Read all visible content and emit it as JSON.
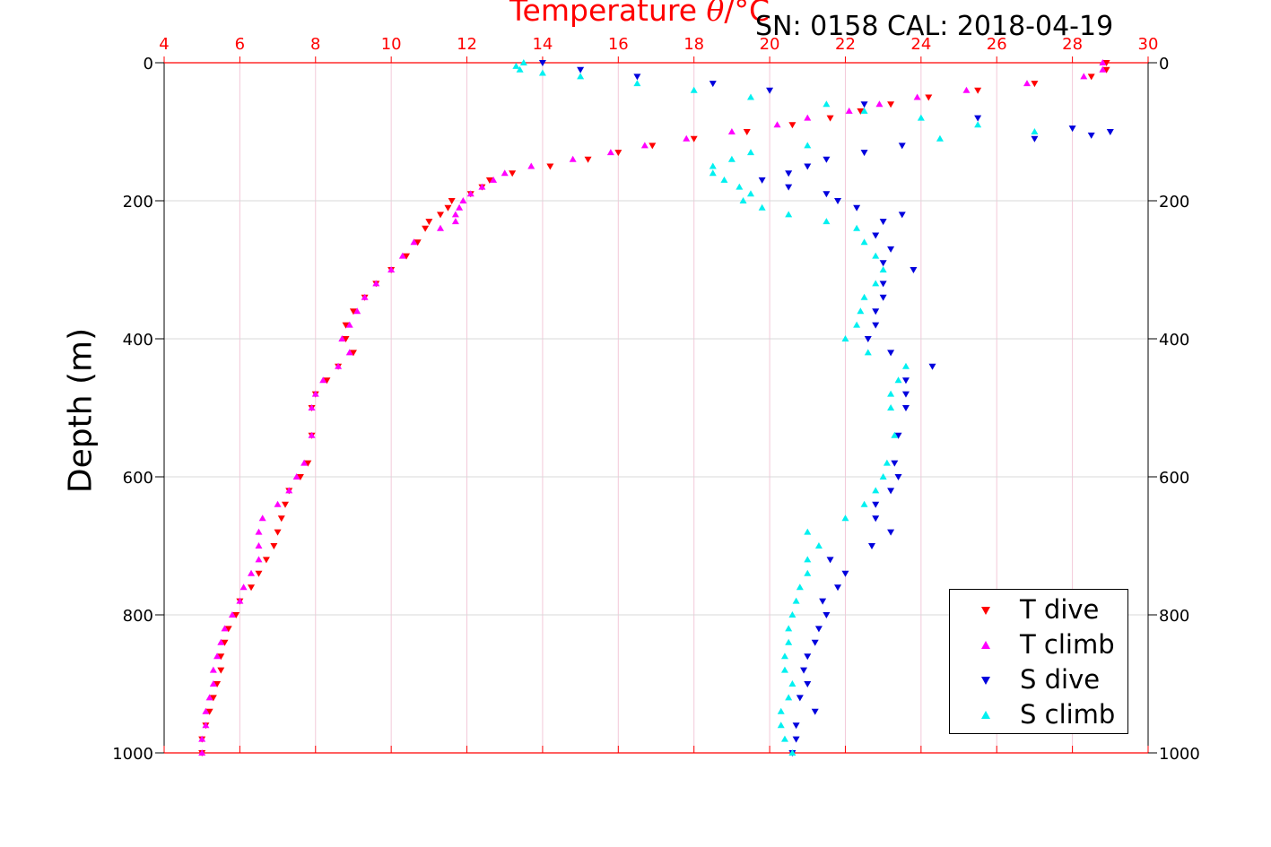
{
  "header": {
    "title_prefix": "Temperature ",
    "title_symbol": "θ",
    "title_suffix": "/°C",
    "serial": "SN: 0158  CAL: 2018-04-19"
  },
  "colors": {
    "t_dive": "#ff0000",
    "t_climb": "#ff00ff",
    "s_dive": "#0000dd",
    "s_climb": "#00f0f0",
    "top_axis": "#ff0000",
    "grid_x": "#f3c9d9",
    "grid_y": "#d9d9d9"
  },
  "chart_data": {
    "type": "scatter",
    "title": "Temperature θ/°C",
    "xlabel": "Temperature θ/°C",
    "ylabel": "Depth (m)",
    "xlim": [
      4,
      30
    ],
    "ylim": [
      1000,
      0
    ],
    "y_inverted": true,
    "xticks": [
      4,
      6,
      8,
      10,
      12,
      14,
      16,
      18,
      20,
      22,
      24,
      26,
      28,
      30
    ],
    "yticks": [
      0,
      200,
      400,
      600,
      800,
      1000
    ],
    "grid": true,
    "legend_position": "bottom-right",
    "series": [
      {
        "name": "T dive",
        "marker": "triangle-down",
        "depth": [
          0,
          10,
          20,
          30,
          40,
          50,
          60,
          70,
          80,
          90,
          100,
          110,
          120,
          130,
          140,
          150,
          160,
          170,
          180,
          190,
          200,
          210,
          220,
          230,
          240,
          260,
          280,
          300,
          320,
          340,
          360,
          380,
          400,
          420,
          440,
          460,
          480,
          500,
          540,
          580,
          600,
          620,
          640,
          660,
          680,
          700,
          720,
          740,
          760,
          780,
          800,
          820,
          840,
          860,
          880,
          900,
          920,
          940,
          960,
          980,
          1000
        ],
        "x": [
          28.9,
          28.9,
          28.5,
          27.0,
          25.5,
          24.2,
          23.2,
          22.4,
          21.6,
          20.6,
          19.4,
          18.0,
          16.9,
          16.0,
          15.2,
          14.2,
          13.2,
          12.6,
          12.4,
          12.1,
          11.6,
          11.5,
          11.3,
          11.0,
          10.9,
          10.7,
          10.4,
          10.0,
          9.6,
          9.3,
          9.0,
          8.8,
          8.8,
          9.0,
          8.6,
          8.3,
          8.0,
          7.9,
          7.9,
          7.8,
          7.6,
          7.3,
          7.2,
          7.1,
          7.0,
          6.9,
          6.7,
          6.5,
          6.3,
          6.0,
          5.9,
          5.7,
          5.6,
          5.5,
          5.5,
          5.4,
          5.3,
          5.2,
          5.1,
          5.0,
          5.0
        ]
      },
      {
        "name": "T climb",
        "marker": "triangle-up",
        "depth": [
          0,
          10,
          20,
          30,
          40,
          50,
          60,
          70,
          80,
          90,
          100,
          110,
          120,
          130,
          140,
          150,
          160,
          170,
          180,
          190,
          200,
          210,
          220,
          230,
          240,
          260,
          280,
          300,
          320,
          340,
          360,
          380,
          400,
          420,
          440,
          460,
          480,
          500,
          540,
          580,
          600,
          620,
          640,
          660,
          680,
          700,
          720,
          740,
          760,
          780,
          800,
          820,
          840,
          860,
          880,
          900,
          920,
          940,
          960,
          980,
          1000
        ],
        "x": [
          28.8,
          28.8,
          28.3,
          26.8,
          25.2,
          23.9,
          22.9,
          22.1,
          21.0,
          20.2,
          19.0,
          17.8,
          16.7,
          15.8,
          14.8,
          13.7,
          13.0,
          12.7,
          12.4,
          12.1,
          11.9,
          11.8,
          11.7,
          11.7,
          11.3,
          10.6,
          10.3,
          10.0,
          9.6,
          9.3,
          9.1,
          8.9,
          8.7,
          8.9,
          8.6,
          8.2,
          8.0,
          7.9,
          7.9,
          7.7,
          7.5,
          7.3,
          7.0,
          6.6,
          6.5,
          6.5,
          6.5,
          6.3,
          6.1,
          6.0,
          5.8,
          5.6,
          5.5,
          5.4,
          5.3,
          5.3,
          5.2,
          5.1,
          5.1,
          5.0,
          5.0
        ]
      },
      {
        "name": "S dive",
        "marker": "triangle-down",
        "depth": [
          0,
          10,
          20,
          30,
          40,
          60,
          80,
          95,
          100,
          105,
          110,
          120,
          130,
          140,
          150,
          160,
          170,
          180,
          190,
          200,
          210,
          220,
          230,
          250,
          270,
          290,
          300,
          320,
          340,
          360,
          380,
          400,
          420,
          440,
          460,
          480,
          500,
          540,
          580,
          600,
          620,
          640,
          660,
          680,
          700,
          720,
          740,
          760,
          780,
          800,
          820,
          840,
          860,
          880,
          900,
          920,
          940,
          960,
          980,
          1000
        ],
        "x": [
          14.0,
          15.0,
          16.5,
          18.5,
          20.0,
          22.5,
          25.5,
          28.0,
          29.0,
          28.5,
          27.0,
          23.5,
          22.5,
          21.5,
          21.0,
          20.5,
          19.8,
          20.5,
          21.5,
          21.8,
          22.3,
          23.5,
          23.0,
          22.8,
          23.2,
          23.0,
          23.8,
          23.0,
          23.0,
          22.8,
          22.8,
          22.6,
          23.2,
          24.3,
          23.6,
          23.6,
          23.6,
          23.4,
          23.3,
          23.4,
          23.2,
          22.8,
          22.8,
          23.2,
          22.7,
          21.6,
          22.0,
          21.8,
          21.4,
          21.5,
          21.3,
          21.2,
          21.0,
          20.9,
          21.0,
          20.8,
          21.2,
          20.7,
          20.7,
          20.6
        ]
      },
      {
        "name": "S climb",
        "marker": "triangle-up",
        "depth": [
          0,
          5,
          10,
          15,
          20,
          30,
          40,
          50,
          60,
          70,
          80,
          90,
          100,
          110,
          120,
          130,
          140,
          150,
          160,
          170,
          180,
          190,
          200,
          210,
          220,
          230,
          240,
          260,
          280,
          300,
          320,
          340,
          360,
          380,
          400,
          420,
          440,
          460,
          480,
          500,
          540,
          580,
          600,
          620,
          640,
          660,
          680,
          700,
          720,
          740,
          760,
          780,
          800,
          820,
          840,
          860,
          880,
          900,
          920,
          940,
          960,
          980,
          1000
        ],
        "x": [
          13.5,
          13.3,
          13.4,
          14.0,
          15.0,
          16.5,
          18.0,
          19.5,
          21.5,
          22.5,
          24.0,
          25.5,
          27.0,
          24.5,
          21.0,
          19.5,
          19.0,
          18.5,
          18.5,
          18.8,
          19.2,
          19.5,
          19.3,
          19.8,
          20.5,
          21.5,
          22.3,
          22.5,
          22.8,
          23.0,
          22.8,
          22.5,
          22.4,
          22.3,
          22.0,
          22.6,
          23.6,
          23.4,
          23.2,
          23.2,
          23.3,
          23.1,
          23.0,
          22.8,
          22.5,
          22.0,
          21.0,
          21.3,
          21.0,
          21.0,
          20.8,
          20.7,
          20.6,
          20.5,
          20.5,
          20.4,
          20.4,
          20.6,
          20.5,
          20.3,
          20.3,
          20.4,
          20.6
        ]
      }
    ]
  }
}
